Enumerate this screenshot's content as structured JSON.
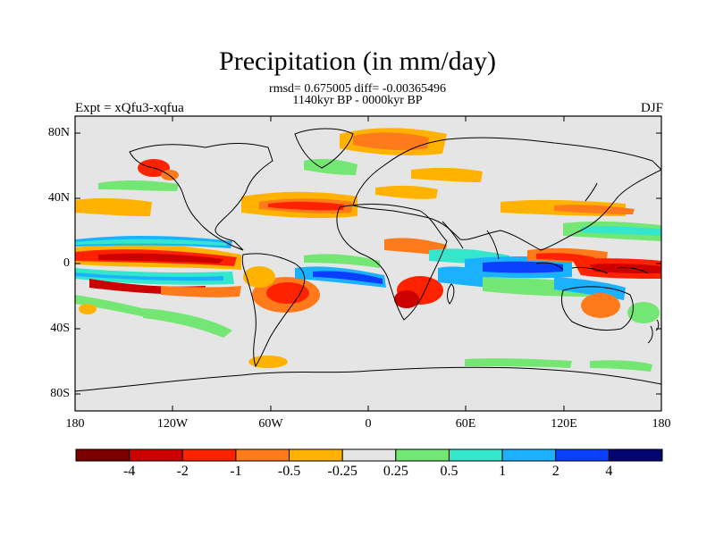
{
  "title": "Precipitation (in mm/day)",
  "stats": "rmsd= 0.675005 diff= -0.00365496",
  "period": "1140kyr BP - 0000kyr BP",
  "experiment": "Expt = xQfu3-xqfua",
  "season": "DJF",
  "lat_labels": [
    "80N",
    "40N",
    "0",
    "40S",
    "80S"
  ],
  "lon_labels": [
    "180",
    "120W",
    "60W",
    "0",
    "60E",
    "120E",
    "180"
  ],
  "colorbar": {
    "labels": [
      "-4",
      "-2",
      "-1",
      "-0.5",
      "-0.25",
      "0.25",
      "0.5",
      "1",
      "2",
      "4"
    ],
    "colors": [
      "#7a0000",
      "#cc0000",
      "#ff2200",
      "#ff7a1a",
      "#ffb300",
      "#e5e5e5",
      "#73e673",
      "#33e6cc",
      "#1ab2ff",
      "#0a3fff",
      "#050570"
    ]
  }
}
